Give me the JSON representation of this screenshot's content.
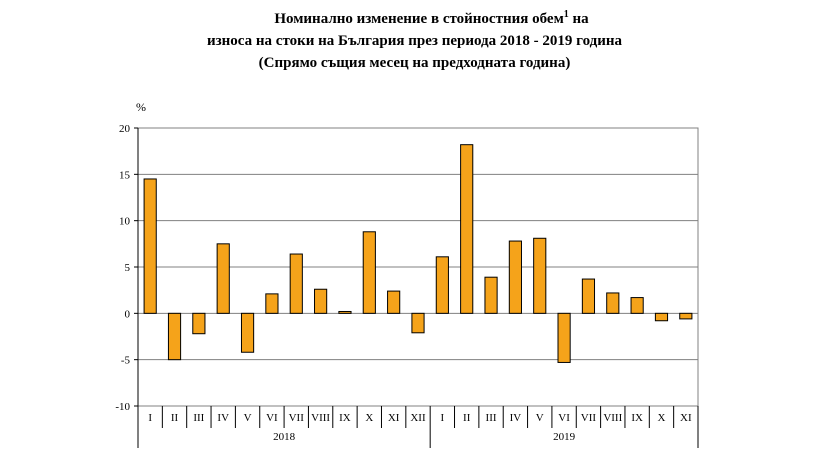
{
  "title": {
    "line1": "Номинално изменение в стойностния обем",
    "line1_sup": "1",
    "line1_end": " на",
    "line2": "износа на стоки на България през периода 2018 - 2019 година",
    "line3": "(Спрямо същия месец на предходната година)"
  },
  "chart_data": {
    "type": "bar",
    "ylabel": "%",
    "ylim": [
      -10,
      20
    ],
    "yticks": [
      -10,
      -5,
      0,
      5,
      10,
      15,
      20
    ],
    "grid": true,
    "bar_color": "#F5A31A",
    "bar_edge_color": "#000000",
    "groups": [
      {
        "label": "2018",
        "categories": [
          "I",
          "II",
          "III",
          "IV",
          "V",
          "VI",
          "VII",
          "VIII",
          "IX",
          "X",
          "XI",
          "XII"
        ]
      },
      {
        "label": "2019",
        "categories": [
          "I",
          "II",
          "III",
          "IV",
          "V",
          "VI",
          "VII",
          "VIII",
          "IX",
          "X",
          "XI"
        ]
      }
    ],
    "values": [
      14.5,
      -5.0,
      -2.2,
      7.5,
      -4.2,
      2.1,
      6.4,
      2.6,
      0.2,
      8.8,
      2.4,
      -2.1,
      6.1,
      18.2,
      3.9,
      7.8,
      8.1,
      -5.3,
      3.7,
      2.2,
      1.7,
      -0.8,
      -0.6
    ]
  }
}
